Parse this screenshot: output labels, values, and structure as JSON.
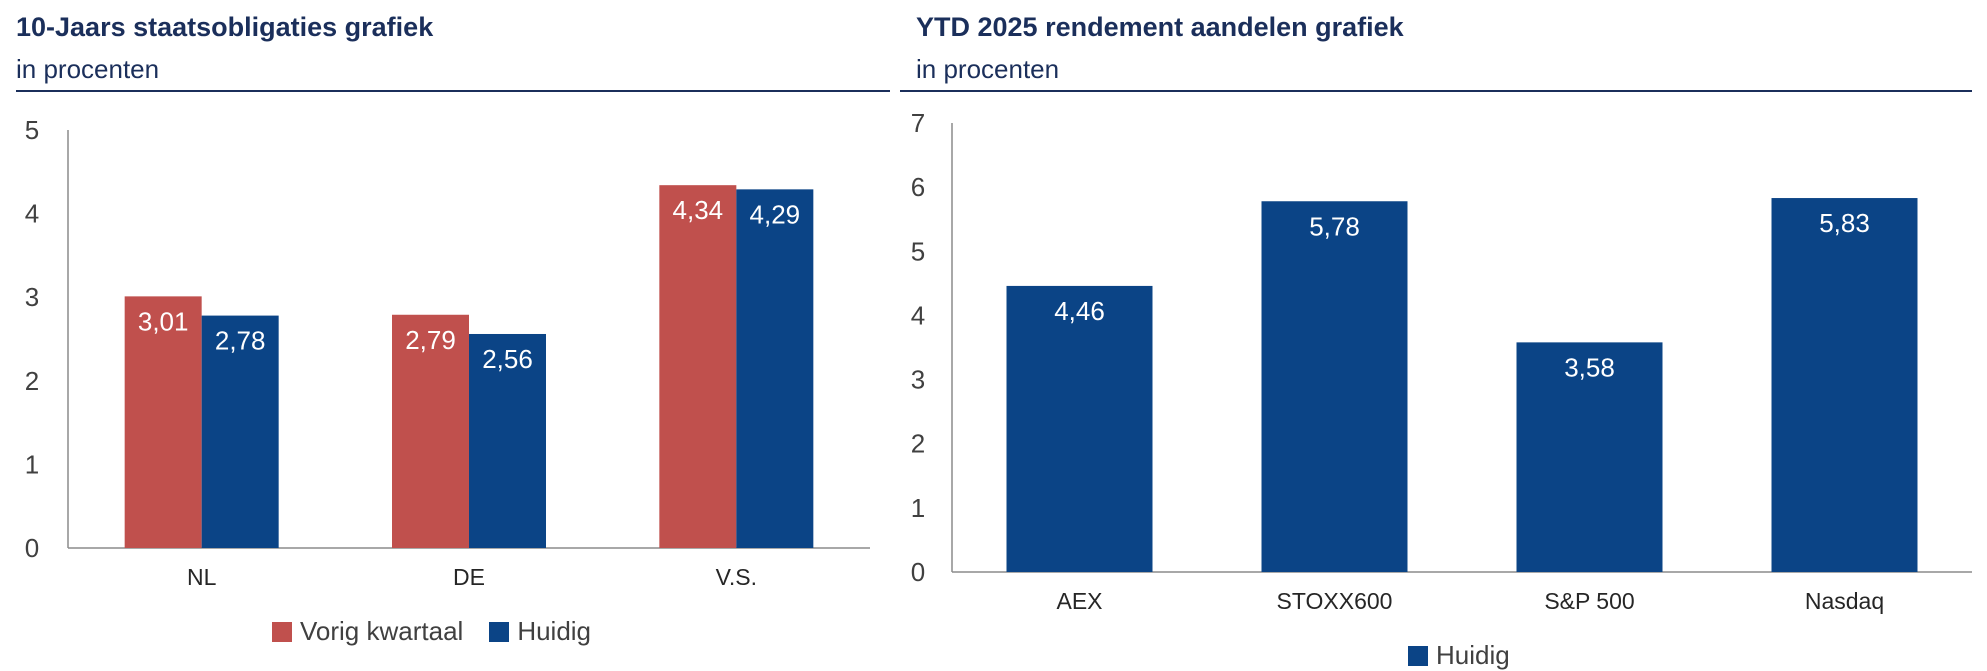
{
  "colors": {
    "vorig": "#c0504d",
    "huidig": "#0b4486",
    "title": "#1b2f5b",
    "axis": "#8c8c8c"
  },
  "chart_data": [
    {
      "type": "bar",
      "title": "10-Jaars staatsobligaties grafiek",
      "subtitle": "in procenten",
      "categories": [
        "NL",
        "DE",
        "V.S."
      ],
      "series": [
        {
          "name": "Vorig kwartaal",
          "values": [
            3.01,
            2.79,
            4.34
          ],
          "labels": [
            "3,01",
            "2,79",
            "4,34"
          ]
        },
        {
          "name": "Huidig",
          "values": [
            2.78,
            2.56,
            4.29
          ],
          "labels": [
            "2,78",
            "2,56",
            "4,29"
          ]
        }
      ],
      "ylim": [
        0,
        5
      ],
      "yticks": [
        "0",
        "1",
        "2",
        "3",
        "4",
        "5"
      ],
      "legend": "bottom",
      "grid": false
    },
    {
      "type": "bar",
      "title": "YTD 2025 rendement aandelen grafiek",
      "subtitle": "in procenten",
      "categories": [
        "AEX",
        "STOXX600",
        "S&P 500",
        "Nasdaq"
      ],
      "series": [
        {
          "name": "Huidig",
          "values": [
            4.46,
            5.78,
            3.58,
            5.83
          ],
          "labels": [
            "4,46",
            "5,78",
            "3,58",
            "5,83"
          ]
        }
      ],
      "ylim": [
        0,
        7
      ],
      "yticks": [
        "0",
        "1",
        "2",
        "3",
        "4",
        "5",
        "6",
        "7"
      ],
      "legend": "bottom",
      "grid": false
    }
  ]
}
